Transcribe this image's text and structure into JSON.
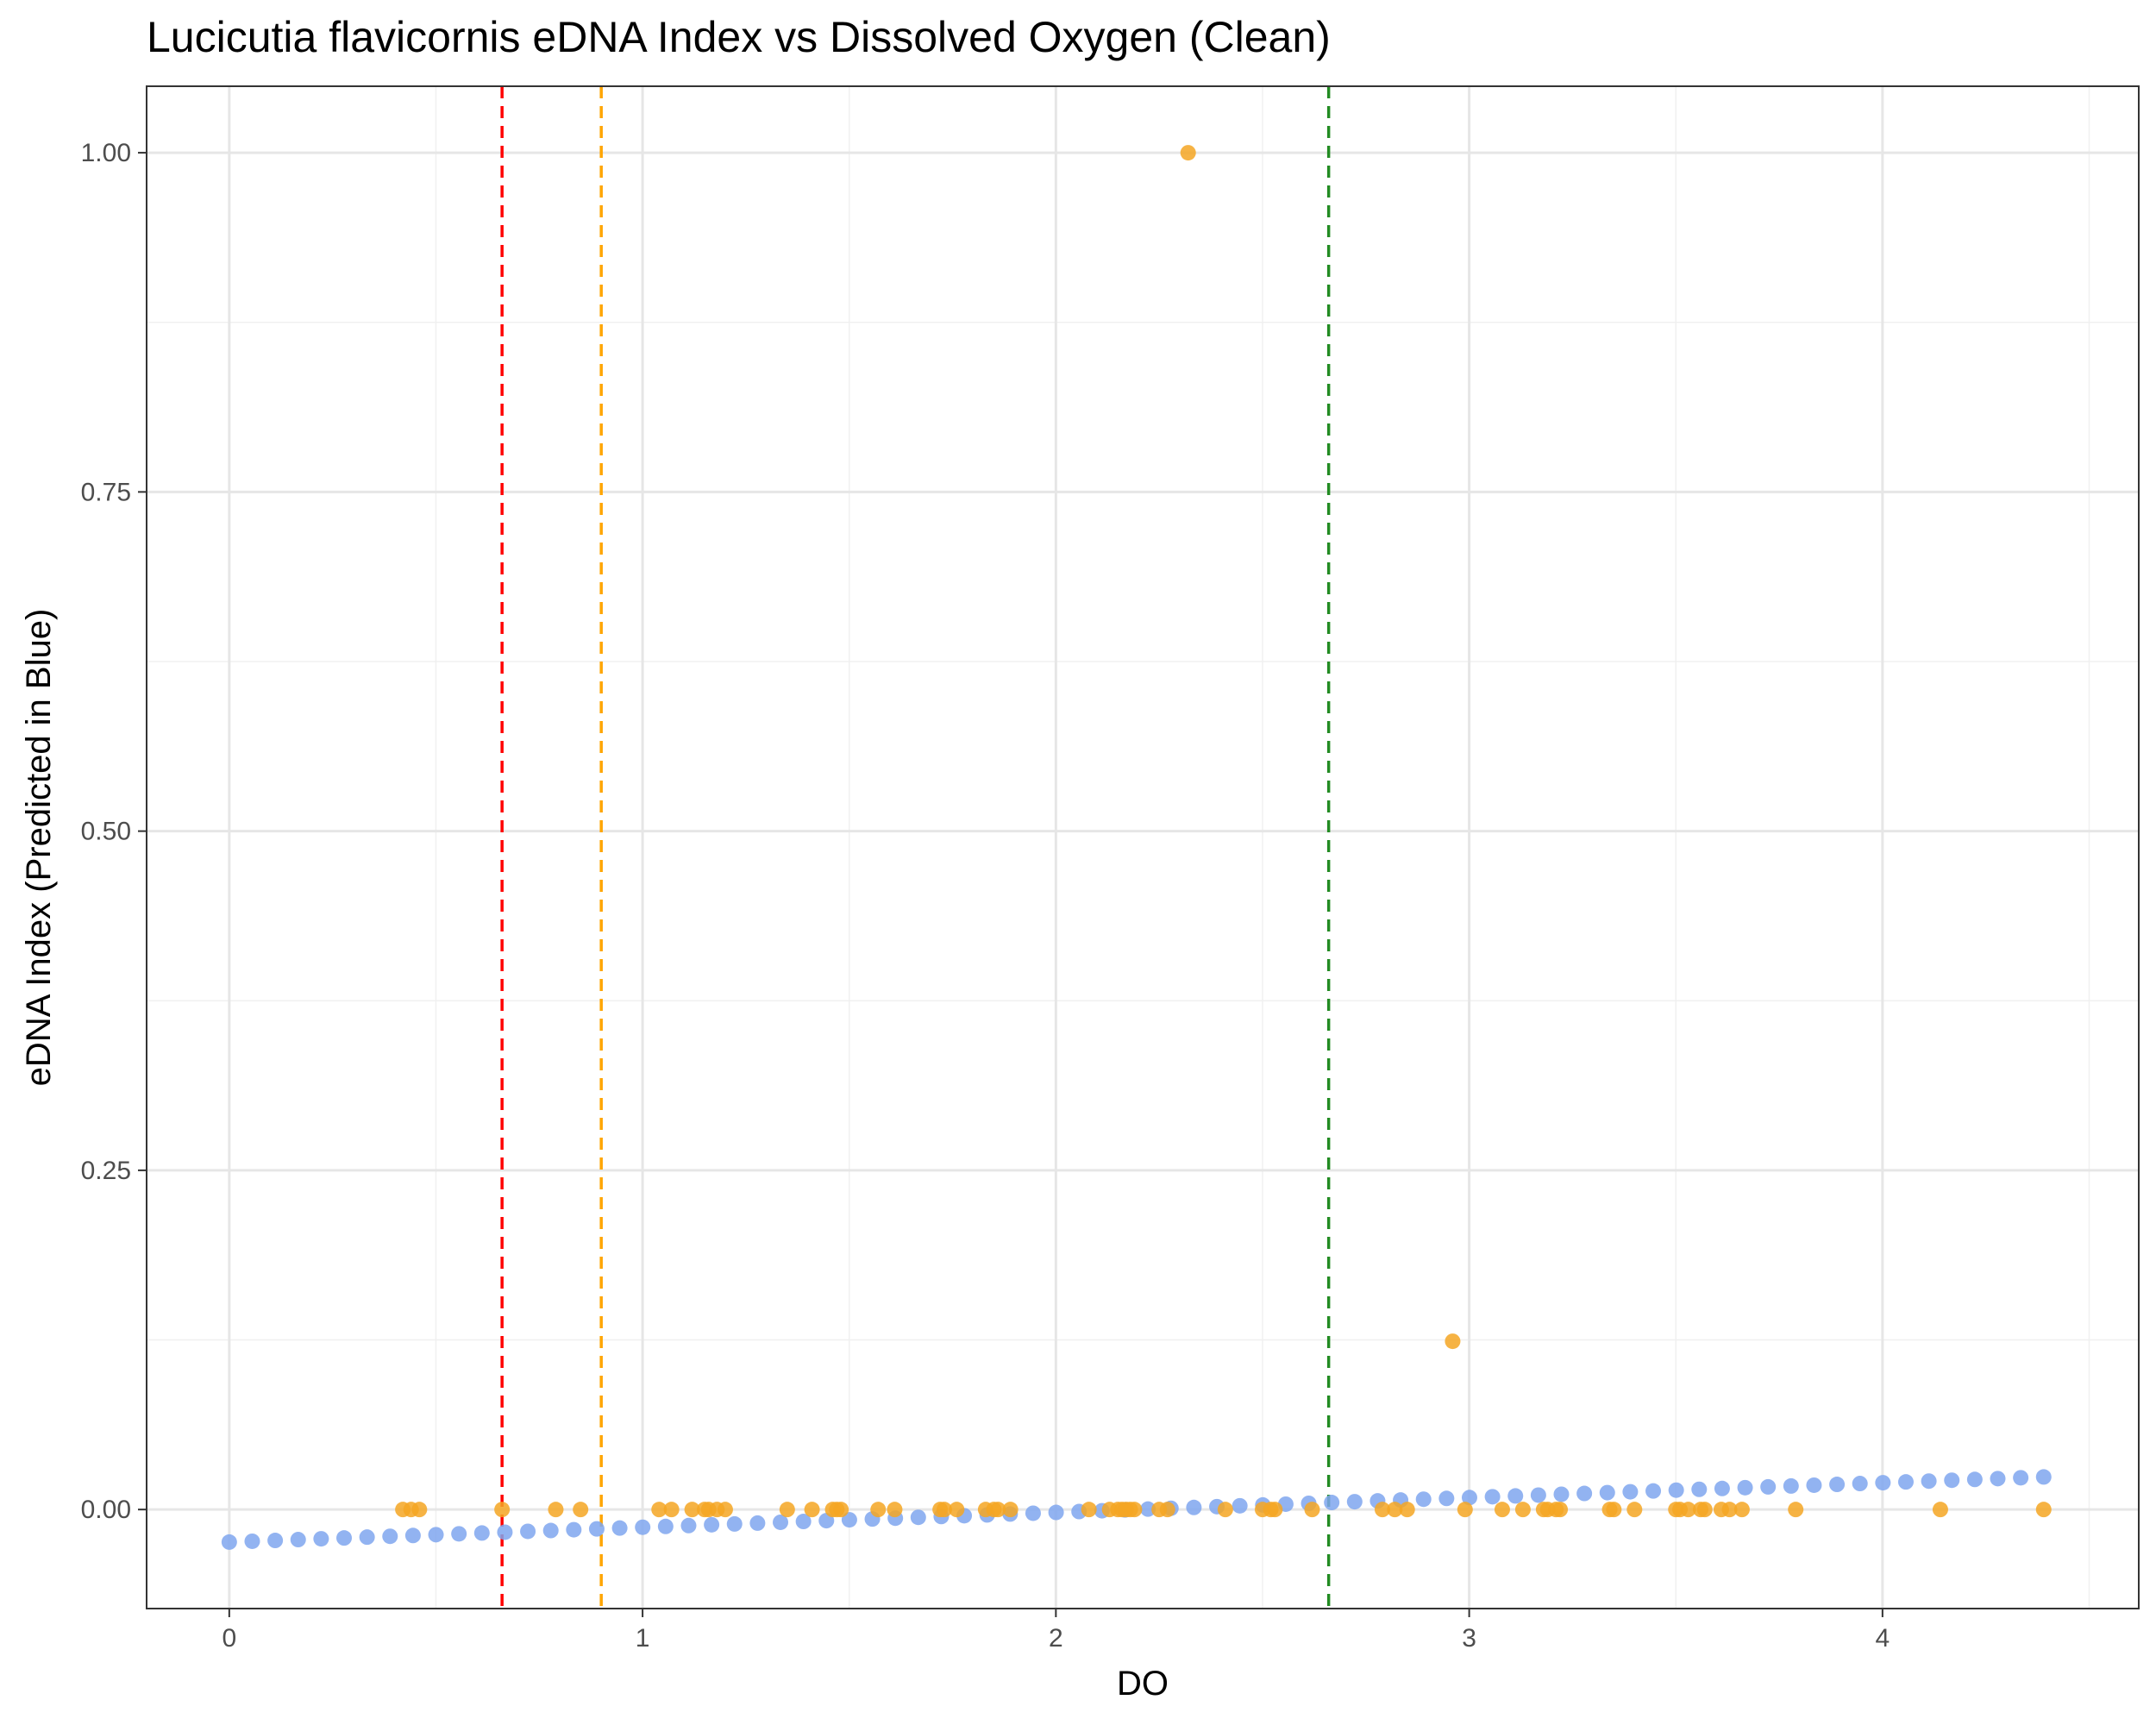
{
  "chart_data": {
    "type": "scatter",
    "title": "Lucicutia flavicornis eDNA Index vs Dissolved Oxygen (Clean)",
    "xlabel": "DO",
    "ylabel": "eDNA Index (Predicted in Blue)",
    "xlim": [
      -0.2,
      4.62
    ],
    "ylim": [
      -0.073,
      1.049
    ],
    "x_ticks": [
      0,
      1,
      2,
      3,
      4
    ],
    "x_tick_labels": [
      "0",
      "1",
      "2",
      "3",
      "4"
    ],
    "y_ticks": [
      0,
      0.25,
      0.5,
      0.75,
      1.0
    ],
    "y_tick_labels": [
      "0.00",
      "0.25",
      "0.50",
      "0.75",
      "1.00"
    ],
    "grid": true,
    "legend": "none",
    "colors": {
      "observed": "#F5A623",
      "predicted": "#7FA6EE",
      "line_red": "#FF0000",
      "line_orange": "#FFA500",
      "line_green": "#228B22"
    },
    "vertical_lines": [
      {
        "x": 0.66,
        "color": "#FF0000",
        "style": "dashed"
      },
      {
        "x": 0.9,
        "color": "#FFA500",
        "style": "dashed"
      },
      {
        "x": 2.66,
        "color": "#228B22",
        "style": "dashed"
      }
    ],
    "series": [
      {
        "role": "predicted",
        "color": "#7FA6EE",
        "x_start": 0.0,
        "x_end": 4.39,
        "n": 80,
        "y_start": -0.024,
        "y_end": 0.024
      },
      {
        "role": "observed",
        "color": "#F5A623",
        "points": [
          [
            0.42,
            0
          ],
          [
            0.44,
            0
          ],
          [
            0.46,
            0
          ],
          [
            0.66,
            0
          ],
          [
            0.79,
            0
          ],
          [
            0.85,
            0
          ],
          [
            1.04,
            0
          ],
          [
            1.07,
            0
          ],
          [
            1.12,
            0
          ],
          [
            1.15,
            0
          ],
          [
            1.16,
            0
          ],
          [
            1.18,
            0
          ],
          [
            1.2,
            0
          ],
          [
            1.35,
            0
          ],
          [
            1.41,
            0
          ],
          [
            1.46,
            0
          ],
          [
            1.47,
            0
          ],
          [
            1.48,
            0
          ],
          [
            1.57,
            0
          ],
          [
            1.61,
            0
          ],
          [
            1.72,
            0
          ],
          [
            1.73,
            0
          ],
          [
            1.76,
            0
          ],
          [
            1.83,
            0
          ],
          [
            1.85,
            0
          ],
          [
            1.86,
            0
          ],
          [
            1.89,
            0
          ],
          [
            2.08,
            0
          ],
          [
            2.13,
            0
          ],
          [
            2.15,
            0
          ],
          [
            2.16,
            0
          ],
          [
            2.17,
            0
          ],
          [
            2.18,
            0
          ],
          [
            2.19,
            0
          ],
          [
            2.25,
            0
          ],
          [
            2.27,
            0
          ],
          [
            2.32,
            1.0
          ],
          [
            2.41,
            0
          ],
          [
            2.5,
            0
          ],
          [
            2.52,
            0
          ],
          [
            2.53,
            0
          ],
          [
            2.62,
            0
          ],
          [
            2.79,
            0
          ],
          [
            2.82,
            0
          ],
          [
            2.85,
            0
          ],
          [
            2.96,
            0.124
          ],
          [
            2.99,
            0
          ],
          [
            3.08,
            0
          ],
          [
            3.13,
            0
          ],
          [
            3.18,
            0
          ],
          [
            3.19,
            0
          ],
          [
            3.21,
            0
          ],
          [
            3.22,
            0
          ],
          [
            3.34,
            0
          ],
          [
            3.35,
            0
          ],
          [
            3.4,
            0
          ],
          [
            3.5,
            0
          ],
          [
            3.51,
            0
          ],
          [
            3.53,
            0
          ],
          [
            3.56,
            0
          ],
          [
            3.57,
            0
          ],
          [
            3.61,
            0
          ],
          [
            3.63,
            0
          ],
          [
            3.66,
            0
          ],
          [
            3.79,
            0
          ],
          [
            4.14,
            0
          ],
          [
            4.39,
            0
          ]
        ]
      }
    ]
  }
}
